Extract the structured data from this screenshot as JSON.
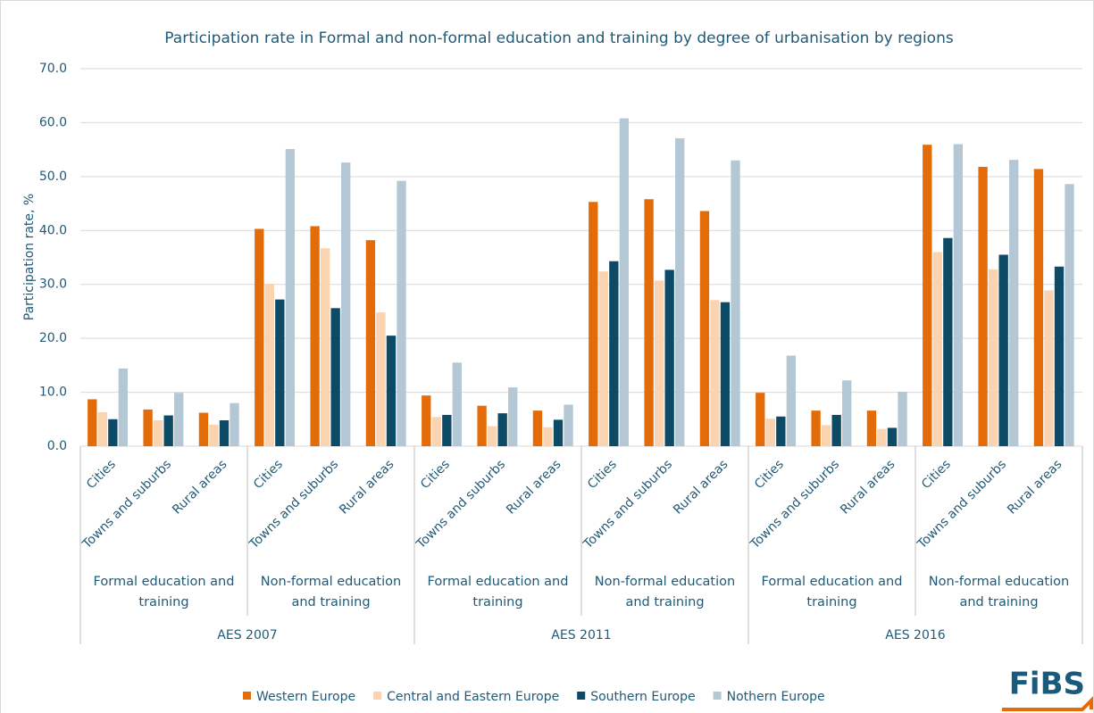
{
  "chart_data": {
    "type": "bar",
    "title": "Participation rate in Formal and non-formal education and training by degree of urbanisation by regions",
    "y_label": "Participation rate, %",
    "categories": [
      "Cities",
      "Towns and suburbs",
      "Rural areas",
      "Cities",
      "Towns and suburbs",
      "Rural areas",
      "Cities",
      "Towns and suburbs",
      "Rural areas",
      "Cities",
      "Towns and suburbs",
      "Rural areas",
      "Cities",
      "Towns and suburbs",
      "Rural areas",
      "Cities",
      "Towns and suburbs",
      "Rural areas"
    ],
    "subgroups": [
      "Formal education and training",
      "Non-formal education and training",
      "Formal education and training",
      "Non-formal education and training",
      "Formal education and training",
      "Non-formal education and training"
    ],
    "groups": [
      "AES 2007",
      "AES 2011",
      "AES 2016"
    ],
    "series": [
      {
        "name": "Western Europe",
        "color": "#e36c09",
        "values": [
          8.7,
          6.8,
          6.2,
          40.3,
          40.8,
          38.2,
          9.4,
          7.5,
          6.6,
          45.3,
          45.8,
          43.6,
          9.9,
          6.6,
          6.6,
          55.9,
          51.8,
          51.4
        ]
      },
      {
        "name": "Central and Eastern Europe",
        "color": "#fad4b1",
        "values": [
          6.3,
          4.8,
          4.0,
          30.1,
          36.7,
          24.8,
          5.4,
          3.7,
          3.5,
          32.4,
          30.7,
          27.1,
          5.1,
          3.9,
          3.2,
          36.0,
          32.8,
          28.9
        ]
      },
      {
        "name": "Southern Europe",
        "color": "#0d4a66",
        "values": [
          5.0,
          5.7,
          4.8,
          27.2,
          25.6,
          20.5,
          5.8,
          6.1,
          4.9,
          34.3,
          32.7,
          26.7,
          5.5,
          5.8,
          3.4,
          38.6,
          35.5,
          33.3
        ]
      },
      {
        "name": "Nothern Europe",
        "color": "#b4c7d4",
        "values": [
          14.4,
          9.9,
          8.0,
          55.1,
          52.6,
          49.2,
          15.5,
          10.9,
          7.7,
          60.8,
          57.1,
          53.0,
          16.8,
          12.2,
          10.1,
          56.0,
          53.1,
          48.6
        ]
      }
    ],
    "ylim": [
      0,
      70
    ],
    "yticks": [
      {
        "value": 0,
        "label": "0.0"
      },
      {
        "value": 10,
        "label": "10.0"
      },
      {
        "value": 20,
        "label": "20.0"
      },
      {
        "value": 30,
        "label": "30.0"
      },
      {
        "value": 40,
        "label": "40.0"
      },
      {
        "value": 50,
        "label": "50.0"
      },
      {
        "value": 60,
        "label": "60.0"
      },
      {
        "value": 70,
        "label": "70.0"
      }
    ],
    "grid": true,
    "legend": "bottom",
    "logo": "FiBS"
  }
}
